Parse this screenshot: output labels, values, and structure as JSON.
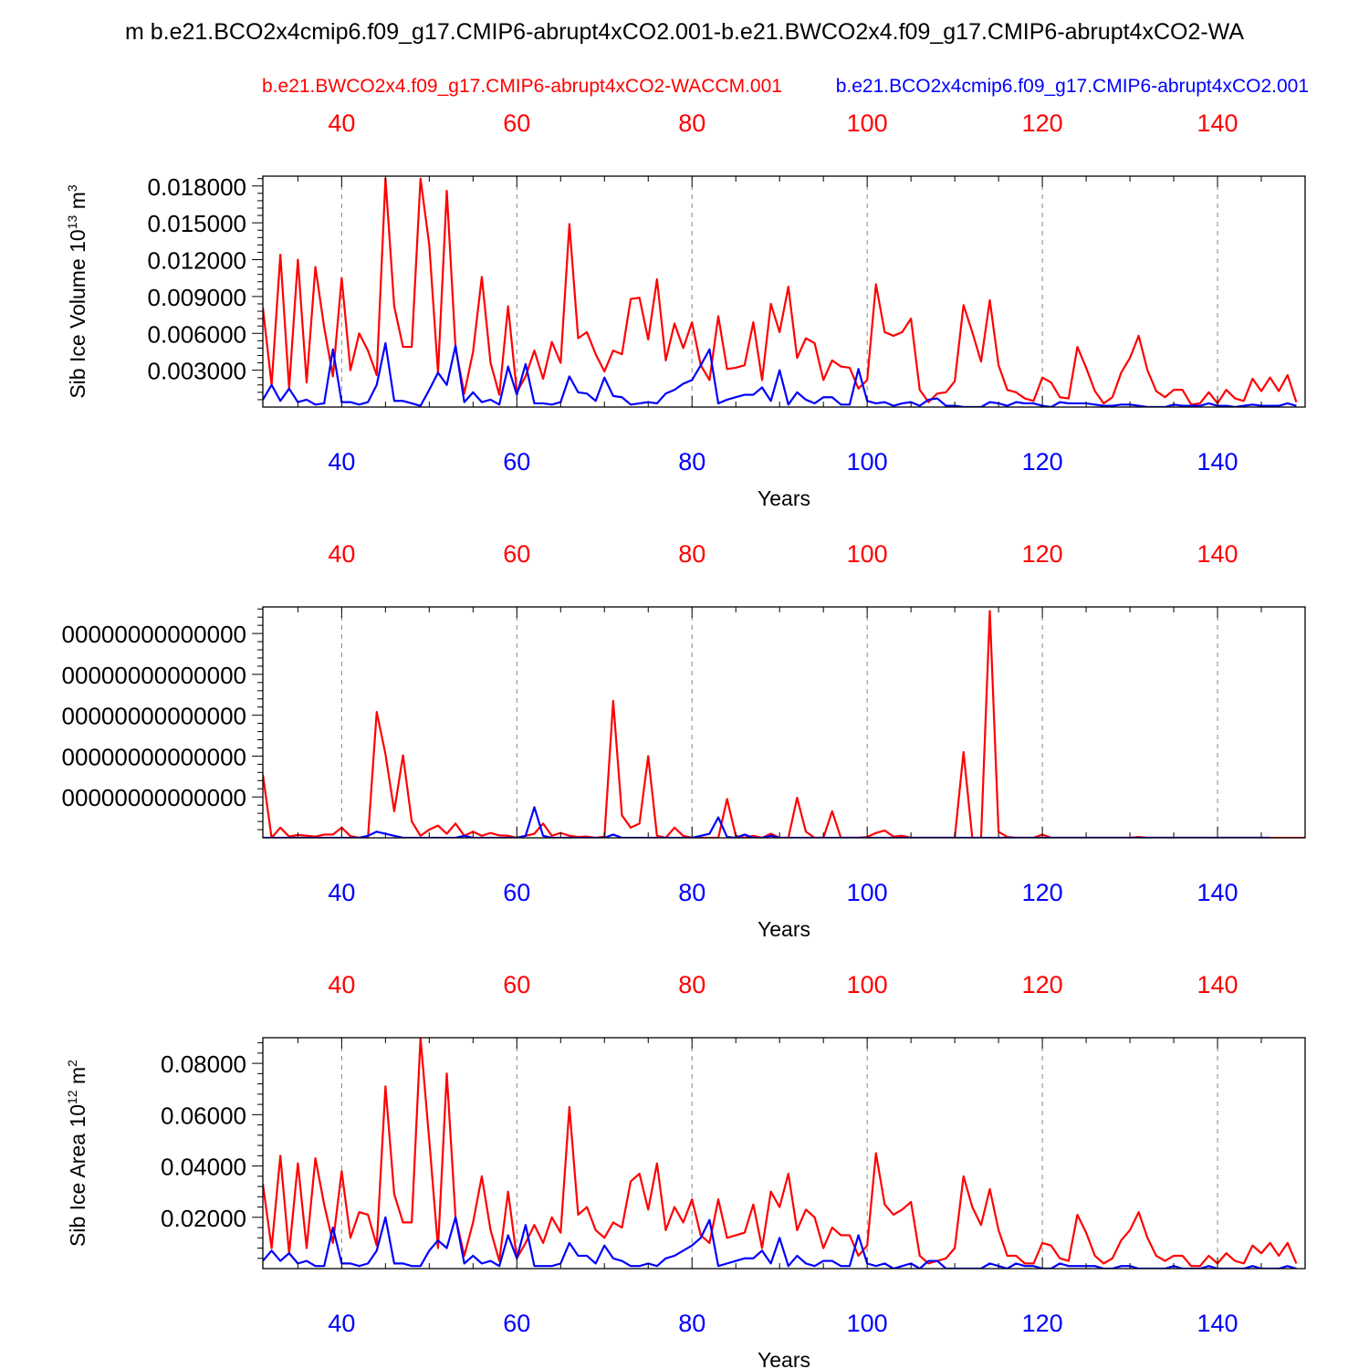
{
  "figure": {
    "main_title": "m b.e21.BCO2x4cmip6.f09_g17.CMIP6-abrupt4xCO2.001-b.e21.BWCO2x4.f09_g17.CMIP6-abrupt4xCO2-WA",
    "legend_red": "b.e21.BWCO2x4.f09_g17.CMIP6-abrupt4xCO2-WACCM.001",
    "legend_blue": "b.e21.BCO2x4cmip6.f09_g17.CMIP6-abrupt4xCO2.001",
    "colors": {
      "red": "#ff0000",
      "blue": "#0000ff",
      "text": "#000000"
    }
  },
  "chart_data": [
    {
      "type": "line",
      "title": "",
      "xlabel": "Years",
      "ylabel": "Sib Ice Volume 10^13 m^3",
      "ylabel_main": "Sib Ice Volume 10",
      "ylabel_exp": "13",
      "ylabel_unit": " m",
      "ylabel_unit_exp": "3",
      "xlim": [
        31,
        150
      ],
      "ylim": [
        0,
        0.0188
      ],
      "xticks": [
        40,
        60,
        80,
        100,
        120,
        140
      ],
      "yticks": [
        0.003,
        0.006,
        0.009,
        0.012,
        0.015,
        0.018
      ],
      "ytick_labels": [
        "0.003000",
        "0.006000",
        "0.009000",
        "0.012000",
        "0.015000",
        "0.018000"
      ],
      "yminor_step": 0.0006,
      "x_start": 31,
      "series": [
        {
          "name": "b.e21.BWCO2x4.f09_g17.CMIP6-abrupt4xCO2-WACCM.001",
          "color": "#ff0000",
          "values": [
            0.0081,
            0.0018,
            0.0124,
            0.0015,
            0.012,
            0.002,
            0.0114,
            0.0065,
            0.0025,
            0.0105,
            0.003,
            0.006,
            0.0046,
            0.0026,
            0.0186,
            0.0082,
            0.0049,
            0.0049,
            0.0186,
            0.0132,
            0.0028,
            0.0176,
            0.0048,
            0.0011,
            0.0045,
            0.0106,
            0.0036,
            0.001,
            0.0082,
            0.0012,
            0.0025,
            0.0046,
            0.0023,
            0.0053,
            0.0036,
            0.0149,
            0.0056,
            0.0061,
            0.0043,
            0.0029,
            0.0046,
            0.0043,
            0.0088,
            0.0089,
            0.0055,
            0.0104,
            0.0038,
            0.0068,
            0.0048,
            0.0069,
            0.0034,
            0.0022,
            0.0074,
            0.0031,
            0.0032,
            0.0034,
            0.0069,
            0.0022,
            0.0084,
            0.0061,
            0.0098,
            0.004,
            0.0056,
            0.0052,
            0.0022,
            0.0038,
            0.0033,
            0.0032,
            0.0015,
            0.0022,
            0.01,
            0.0061,
            0.0058,
            0.0061,
            0.0072,
            0.0014,
            0.0004,
            0.0011,
            0.0012,
            0.0021,
            0.0083,
            0.0061,
            0.0037,
            0.0087,
            0.0034,
            0.0014,
            0.0012,
            0.0007,
            0.0005,
            0.0024,
            0.002,
            0.0008,
            0.0007,
            0.0049,
            0.0032,
            0.0013,
            0.0003,
            0.0008,
            0.0028,
            0.004,
            0.0058,
            0.003,
            0.0013,
            0.0008,
            0.0014,
            0.0014,
            0.0002,
            0.0003,
            0.0012,
            0.0003,
            0.0014,
            0.0007,
            0.0005,
            0.0023,
            0.0013,
            0.0024,
            0.0013,
            0.0026,
            0.0004
          ]
        },
        {
          "name": "b.e21.BCO2x4cmip6.f09_g17.CMIP6-abrupt4xCO2.001",
          "color": "#0000ff",
          "values": [
            0.0006,
            0.0018,
            0.0005,
            0.0015,
            0.0004,
            0.0006,
            0.0002,
            0.0003,
            0.0047,
            0.0004,
            0.0004,
            0.0002,
            0.0004,
            0.0018,
            0.0052,
            0.0005,
            0.0005,
            0.0003,
            0.0001,
            0.0014,
            0.0028,
            0.0018,
            0.005,
            0.0004,
            0.0012,
            0.0004,
            0.0006,
            0.0002,
            0.0033,
            0.001,
            0.0035,
            0.0003,
            0.0003,
            0.0002,
            0.0004,
            0.0025,
            0.0012,
            0.0011,
            0.0005,
            0.0024,
            0.0009,
            0.0008,
            0.0002,
            0.0003,
            0.0004,
            0.0003,
            0.0011,
            0.0014,
            0.0019,
            0.0022,
            0.0034,
            0.0047,
            0.0003,
            0.0006,
            0.0008,
            0.001,
            0.001,
            0.0016,
            0.0005,
            0.003,
            0.0002,
            0.0012,
            0.0006,
            0.0003,
            0.0008,
            0.0008,
            0.0002,
            0.0002,
            0.0031,
            0.0005,
            0.0003,
            0.0004,
            0.0001,
            0.0003,
            0.0004,
            0.0001,
            0.0006,
            0.0007,
            0.0001,
            0.0001,
            0,
            0,
            0,
            0.0004,
            0.0003,
            0.0001,
            0.0004,
            0.0003,
            0.0003,
            0.0001,
            0,
            0.0004,
            0.0003,
            0.0003,
            0.0003,
            0.0002,
            0.0001,
            0.0001,
            0.0002,
            0.0002,
            0.0001,
            0,
            0,
            0,
            0.0002,
            0.0001,
            0.0001,
            0.0001,
            0.0003,
            0.0001,
            0.0001,
            0,
            0.0001,
            0.0002,
            0.0001,
            0.0001,
            0.0001,
            0.0003,
            0.0001
          ]
        }
      ]
    },
    {
      "type": "line",
      "title": "",
      "xlabel": "Years",
      "ylabel": "",
      "xlim": [
        31,
        150
      ],
      "ylim": [
        0,
        5.65
      ],
      "xticks": [
        40,
        60,
        80,
        100,
        120,
        140
      ],
      "yticks": [
        1,
        2,
        3,
        4,
        5
      ],
      "ytick_labels": [
        "00000000000000",
        "00000000000000",
        "00000000000000",
        "00000000000000",
        "00000000000000"
      ],
      "yminor_step": 0.2,
      "x_start": 31,
      "series": [
        {
          "name": "b.e21.BWCO2x4.f09_g17.CMIP6-abrupt4xCO2-WACCM.001",
          "color": "#ff0000",
          "values": [
            1.55,
            0,
            0.25,
            0.03,
            0.07,
            0.05,
            0.03,
            0.08,
            0.08,
            0.25,
            0.04,
            0,
            0,
            3.08,
            2.05,
            0.65,
            2.02,
            0.4,
            0.05,
            0.2,
            0.3,
            0.1,
            0.35,
            0.05,
            0.15,
            0.05,
            0.12,
            0.06,
            0.05,
            0,
            0.05,
            0.1,
            0.35,
            0.05,
            0.12,
            0.05,
            0.02,
            0.03,
            0,
            0.03,
            3.35,
            0.55,
            0.25,
            0.35,
            2.0,
            0.05,
            0,
            0.25,
            0.05,
            0,
            0,
            0,
            0,
            0.95,
            0.05,
            0,
            0.05,
            0,
            0.1,
            0,
            0,
            0.98,
            0.15,
            0,
            0,
            0.65,
            0,
            0,
            0,
            0.02,
            0.12,
            0.18,
            0.03,
            0.05,
            0,
            0,
            0,
            0,
            0,
            0,
            2.1,
            0,
            0,
            5.55,
            0.15,
            0.02,
            0,
            0,
            0,
            0.08,
            0,
            0,
            0,
            0,
            0,
            0,
            0,
            0,
            0,
            0,
            0.02,
            0,
            0,
            0,
            0,
            0,
            0,
            0,
            0,
            0,
            0,
            0,
            0,
            0,
            0,
            0,
            0,
            0,
            0,
            0
          ]
        },
        {
          "name": "b.e21.BCO2x4cmip6.f09_g17.CMIP6-abrupt4xCO2.001",
          "color": "#0000ff",
          "values": [
            0,
            0,
            0,
            0,
            0,
            0,
            0,
            0,
            0,
            0,
            0,
            0,
            0.05,
            0.15,
            0.1,
            0.05,
            0,
            0,
            0,
            0,
            0,
            0,
            0,
            0.05,
            0,
            0,
            0,
            0,
            0,
            0,
            0.05,
            0.75,
            0.05,
            0,
            0,
            0,
            0,
            0,
            0,
            0,
            0.08,
            0,
            0,
            0,
            0,
            0,
            0,
            0,
            0,
            0,
            0.05,
            0.1,
            0.5,
            0.02,
            0,
            0.08,
            0,
            0,
            0.05,
            0,
            0,
            0,
            0,
            0,
            0,
            0,
            0,
            0,
            0,
            0,
            0,
            0,
            0,
            0,
            0,
            0,
            0,
            0,
            0,
            0,
            0,
            0,
            0,
            0,
            0,
            0,
            0,
            0,
            0,
            0,
            0,
            0,
            0,
            0,
            0,
            0,
            0,
            0,
            0,
            0,
            0,
            0,
            0,
            0,
            0,
            0,
            0,
            0,
            0,
            0,
            0,
            0,
            0,
            0,
            0,
            0
          ]
        }
      ]
    },
    {
      "type": "line",
      "title": "",
      "xlabel": "Years",
      "ylabel": "Sib Ice Area 10^12 m^2",
      "ylabel_main": "Sib Ice Area 10",
      "ylabel_exp": "12",
      "ylabel_unit": " m",
      "ylabel_unit_exp": "2",
      "xlim": [
        31,
        150
      ],
      "ylim": [
        0,
        0.09
      ],
      "xticks": [
        40,
        60,
        80,
        100,
        120,
        140
      ],
      "yticks": [
        0.02,
        0.04,
        0.06,
        0.08
      ],
      "ytick_labels": [
        "0.02000",
        "0.04000",
        "0.06000",
        "0.08000"
      ],
      "yminor_step": 0.004,
      "x_start": 31,
      "series": [
        {
          "name": "b.e21.BWCO2x4.f09_g17.CMIP6-abrupt4xCO2-WACCM.001",
          "color": "#ff0000",
          "values": [
            0.033,
            0.008,
            0.044,
            0.006,
            0.041,
            0.008,
            0.043,
            0.025,
            0.01,
            0.038,
            0.012,
            0.022,
            0.021,
            0.009,
            0.071,
            0.029,
            0.018,
            0.018,
            0.09,
            0.05,
            0.008,
            0.076,
            0.02,
            0.005,
            0.018,
            0.036,
            0.015,
            0.003,
            0.03,
            0.004,
            0.01,
            0.017,
            0.01,
            0.02,
            0.014,
            0.063,
            0.021,
            0.024,
            0.015,
            0.012,
            0.018,
            0.016,
            0.034,
            0.037,
            0.023,
            0.041,
            0.015,
            0.024,
            0.018,
            0.027,
            0.013,
            0.01,
            0.027,
            0.012,
            0.013,
            0.014,
            0.025,
            0.008,
            0.03,
            0.024,
            0.037,
            0.015,
            0.023,
            0.02,
            0.008,
            0.016,
            0.013,
            0.013,
            0.005,
            0.009,
            0.045,
            0.025,
            0.021,
            0.023,
            0.026,
            0.005,
            0.002,
            0.003,
            0.004,
            0.008,
            0.036,
            0.024,
            0.017,
            0.031,
            0.015,
            0.005,
            0.005,
            0.002,
            0.002,
            0.01,
            0.009,
            0.004,
            0.003,
            0.021,
            0.014,
            0.005,
            0.002,
            0.004,
            0.011,
            0.015,
            0.022,
            0.012,
            0.005,
            0.003,
            0.005,
            0.005,
            0.001,
            0.001,
            0.005,
            0.002,
            0.006,
            0.003,
            0.002,
            0.009,
            0.006,
            0.01,
            0.005,
            0.01,
            0.002
          ]
        },
        {
          "name": "b.e21.BCO2x4cmip6.f09_g17.CMIP6-abrupt4xCO2.001",
          "color": "#0000ff",
          "values": [
            0.003,
            0.007,
            0.003,
            0.006,
            0.002,
            0.003,
            0.001,
            0.001,
            0.016,
            0.002,
            0.002,
            0.001,
            0.002,
            0.007,
            0.02,
            0.002,
            0.002,
            0.001,
            0.001,
            0.007,
            0.011,
            0.008,
            0.02,
            0.002,
            0.005,
            0.002,
            0.003,
            0.001,
            0.013,
            0.004,
            0.017,
            0.001,
            0.001,
            0.001,
            0.002,
            0.01,
            0.005,
            0.005,
            0.002,
            0.009,
            0.004,
            0.003,
            0.001,
            0.001,
            0.002,
            0.001,
            0.004,
            0.005,
            0.007,
            0.009,
            0.012,
            0.019,
            0.001,
            0.002,
            0.003,
            0.004,
            0.004,
            0.007,
            0.002,
            0.012,
            0.001,
            0.005,
            0.002,
            0.001,
            0.003,
            0.003,
            0.001,
            0.001,
            0.013,
            0.002,
            0.001,
            0.002,
            0,
            0.001,
            0.002,
            0,
            0.003,
            0.003,
            0,
            0,
            0,
            0,
            0,
            0.002,
            0.001,
            0,
            0.002,
            0.001,
            0.001,
            0,
            0,
            0.002,
            0.001,
            0.001,
            0.001,
            0.001,
            0,
            0,
            0.001,
            0.001,
            0,
            0,
            0,
            0,
            0.001,
            0,
            0,
            0,
            0.001,
            0,
            0,
            0,
            0,
            0.001,
            0,
            0,
            0,
            0.001,
            0
          ]
        }
      ]
    }
  ]
}
